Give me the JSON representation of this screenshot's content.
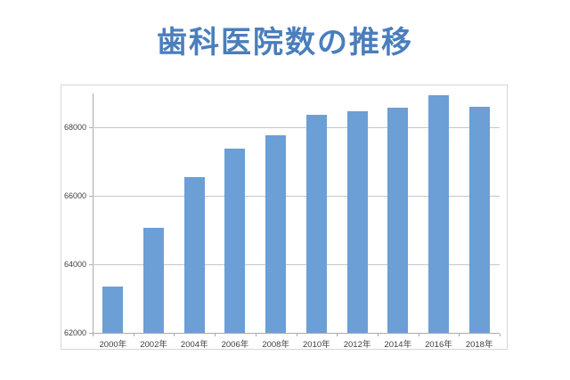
{
  "title": "歯科医院数の推移",
  "chart_data": {
    "type": "bar",
    "title": "歯科医院数の推移",
    "categories": [
      "2000年",
      "2002年",
      "2004年",
      "2006年",
      "2008年",
      "2010年",
      "2012年",
      "2014年",
      "2016年",
      "2018年"
    ],
    "values": [
      63361,
      65073,
      66557,
      67392,
      67779,
      68384,
      68474,
      68592,
      68940,
      68613
    ],
    "xlabel": "",
    "ylabel": "",
    "ylim": [
      62000,
      69000
    ],
    "yticks": [
      62000,
      64000,
      66000,
      68000
    ],
    "ytick_interval": 2000,
    "grid": true,
    "legend": false,
    "bar_color": "#6b9fd6",
    "gridline_color": "#c6c6c6",
    "axis_color": "#ababab",
    "title_color": "#4a7ebc",
    "tick_label_color": "#3f3f3f"
  }
}
